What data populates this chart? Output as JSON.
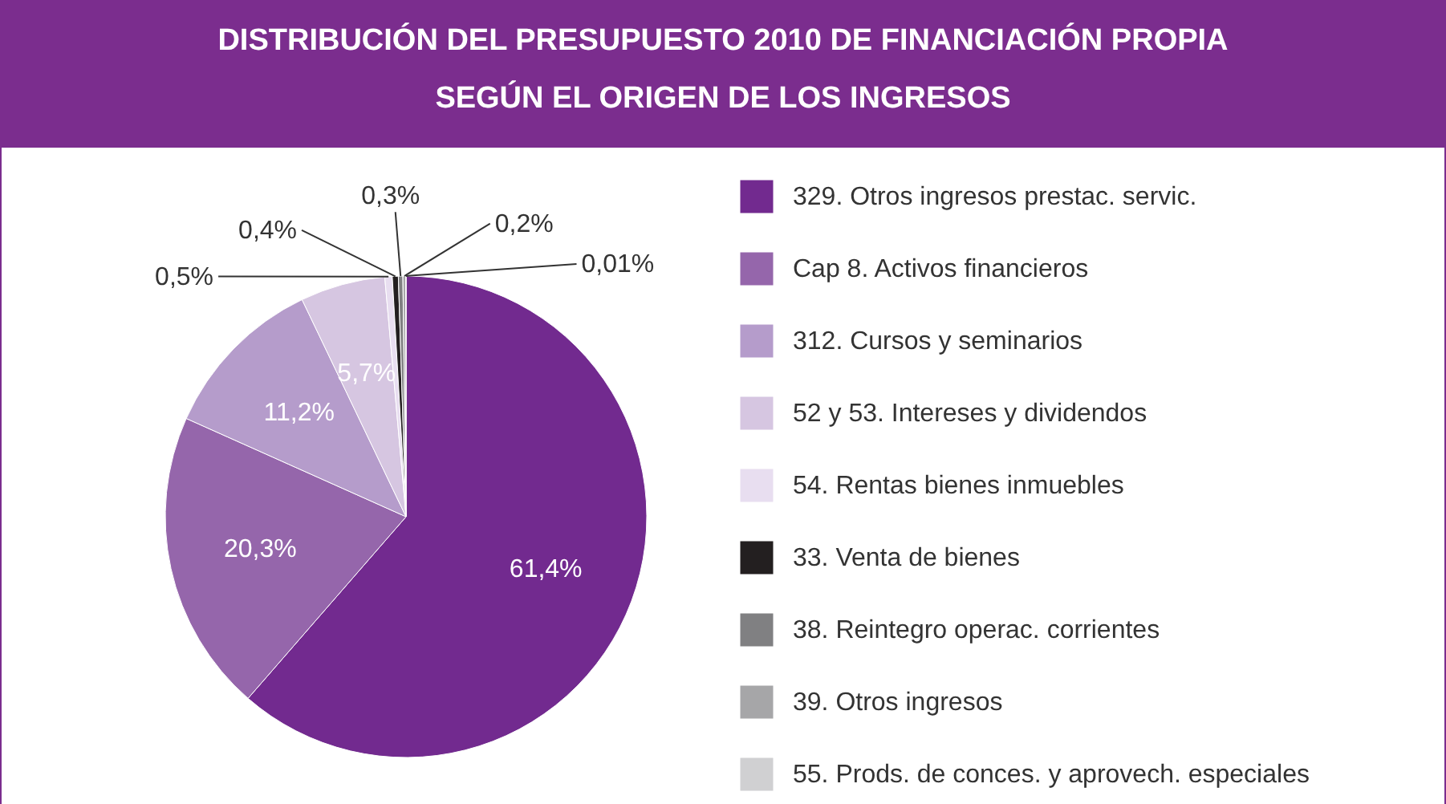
{
  "chart_data": {
    "type": "pie",
    "title": "DISTRIBUCIÓN DEL PRESUPUESTO 2010 DE FINANCIACIÓN PROPIA\nSEGÚN EL ORIGEN DE LOS INGRESOS",
    "categories": [
      "329. Otros ingresos prestac. servic.",
      "Cap 8. Activos financieros",
      "312. Cursos y seminarios",
      "52 y 53. Intereses y dividendos",
      "54. Rentas bienes inmuebles",
      "33. Venta de bienes",
      "38. Reintegro operac. corrientes",
      "39. Otros ingresos",
      "55. Prods. de conces. y aprovech. especiales"
    ],
    "values": [
      61.4,
      20.3,
      11.2,
      5.7,
      0.5,
      0.4,
      0.3,
      0.2,
      0.01
    ],
    "colors": [
      "#722a8f",
      "#9566ab",
      "#b59ccb",
      "#d6c6e1",
      "#e8def0",
      "#231f20",
      "#808082",
      "#a6a6a8",
      "#d0d0d2"
    ],
    "value_labels": [
      "61,4%",
      "20,3%",
      "11,2%",
      "5,7%",
      "0,5%",
      "0,4%",
      "0,3%",
      "0,2%",
      "0,01%"
    ],
    "legend": "right"
  }
}
